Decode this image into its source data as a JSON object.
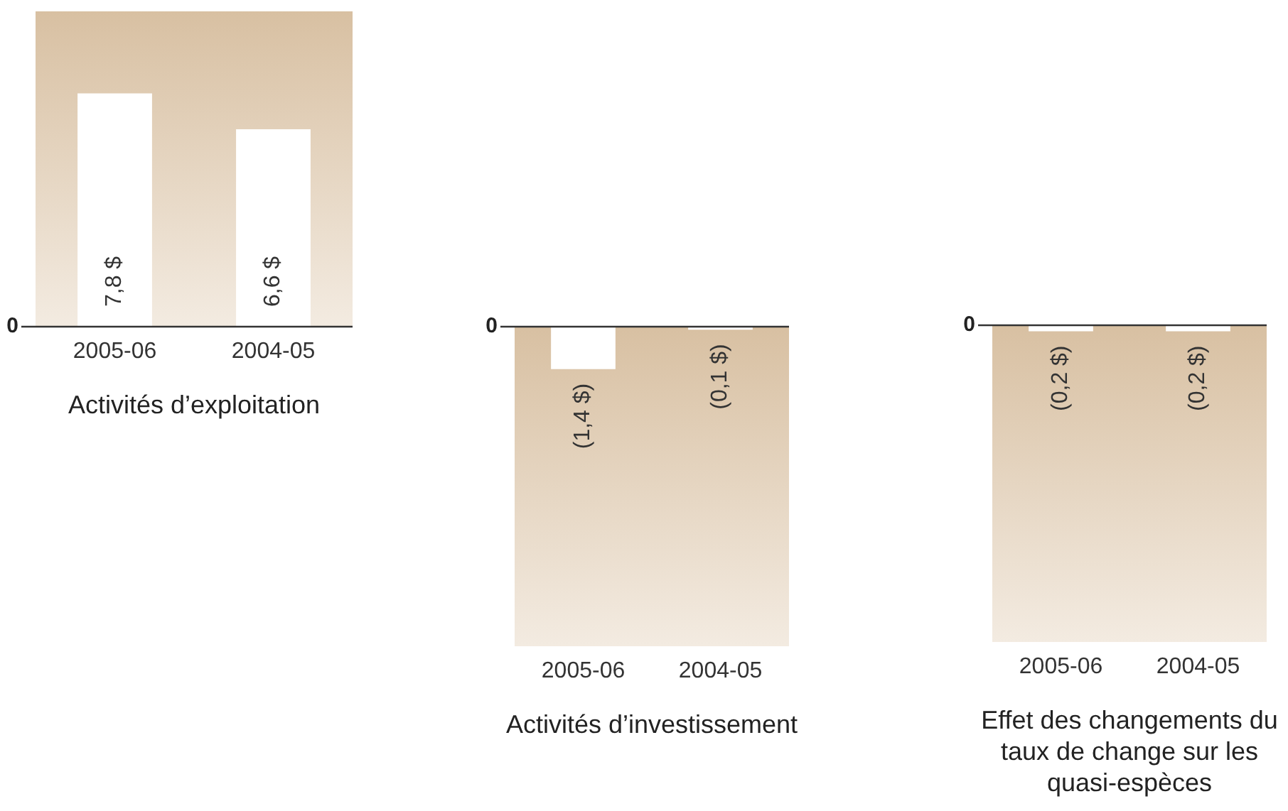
{
  "chart_data": [
    {
      "type": "bar",
      "title": "Activités d’exploitation",
      "categories": [
        "2005-06",
        "2004-05"
      ],
      "values": [
        7.8,
        6.6
      ],
      "value_labels": [
        "7,8 $",
        "6,6 $"
      ],
      "color": "#ffffff",
      "annotations": [
        "0"
      ],
      "grid": false,
      "legend": false
    },
    {
      "type": "bar",
      "title": "Activités d’investissement",
      "categories": [
        "2005-06",
        "2004-05"
      ],
      "values": [
        -1.4,
        -0.1
      ],
      "value_labels": [
        "(1,4 $)",
        "(0,1 $)"
      ],
      "color": "#ffffff",
      "annotations": [
        "0"
      ],
      "grid": false,
      "legend": false
    },
    {
      "type": "bar",
      "title": "Effet des changements du taux de change sur les quasi-espèces",
      "categories": [
        "2005-06",
        "2004-05"
      ],
      "values": [
        -0.2,
        -0.2
      ],
      "value_labels": [
        "(0,2 $)",
        "(0,2 $)"
      ],
      "color": "#ffffff",
      "annotations": [
        "0"
      ],
      "grid": false,
      "legend": false
    }
  ]
}
